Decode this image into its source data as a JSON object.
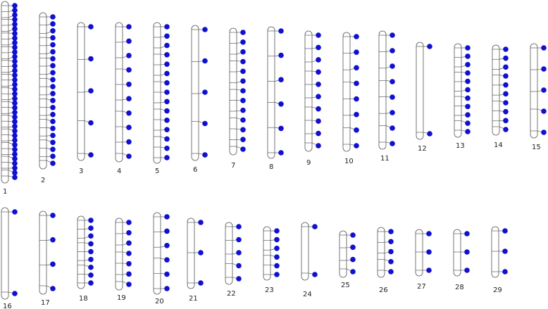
{
  "chromosomes": [
    {
      "label": "1"
    },
    {
      "label": "2"
    },
    {
      "label": "3"
    },
    {
      "label": "4"
    },
    {
      "label": "5"
    },
    {
      "label": "6"
    },
    {
      "label": "7"
    },
    {
      "label": "8"
    },
    {
      "label": "9"
    },
    {
      "label": "10"
    },
    {
      "label": "11"
    },
    {
      "label": "12"
    },
    {
      "label": "13"
    },
    {
      "label": "14"
    },
    {
      "label": "15"
    },
    {
      "label": "16"
    },
    {
      "label": "17"
    },
    {
      "label": "18"
    },
    {
      "label": "19"
    },
    {
      "label": "20"
    },
    {
      "label": "21"
    },
    {
      "label": "22"
    },
    {
      "label": "23"
    },
    {
      "label": "24"
    },
    {
      "label": "25"
    },
    {
      "label": "26"
    },
    {
      "label": "27"
    },
    {
      "label": "28"
    },
    {
      "label": "29"
    }
  ]
}
